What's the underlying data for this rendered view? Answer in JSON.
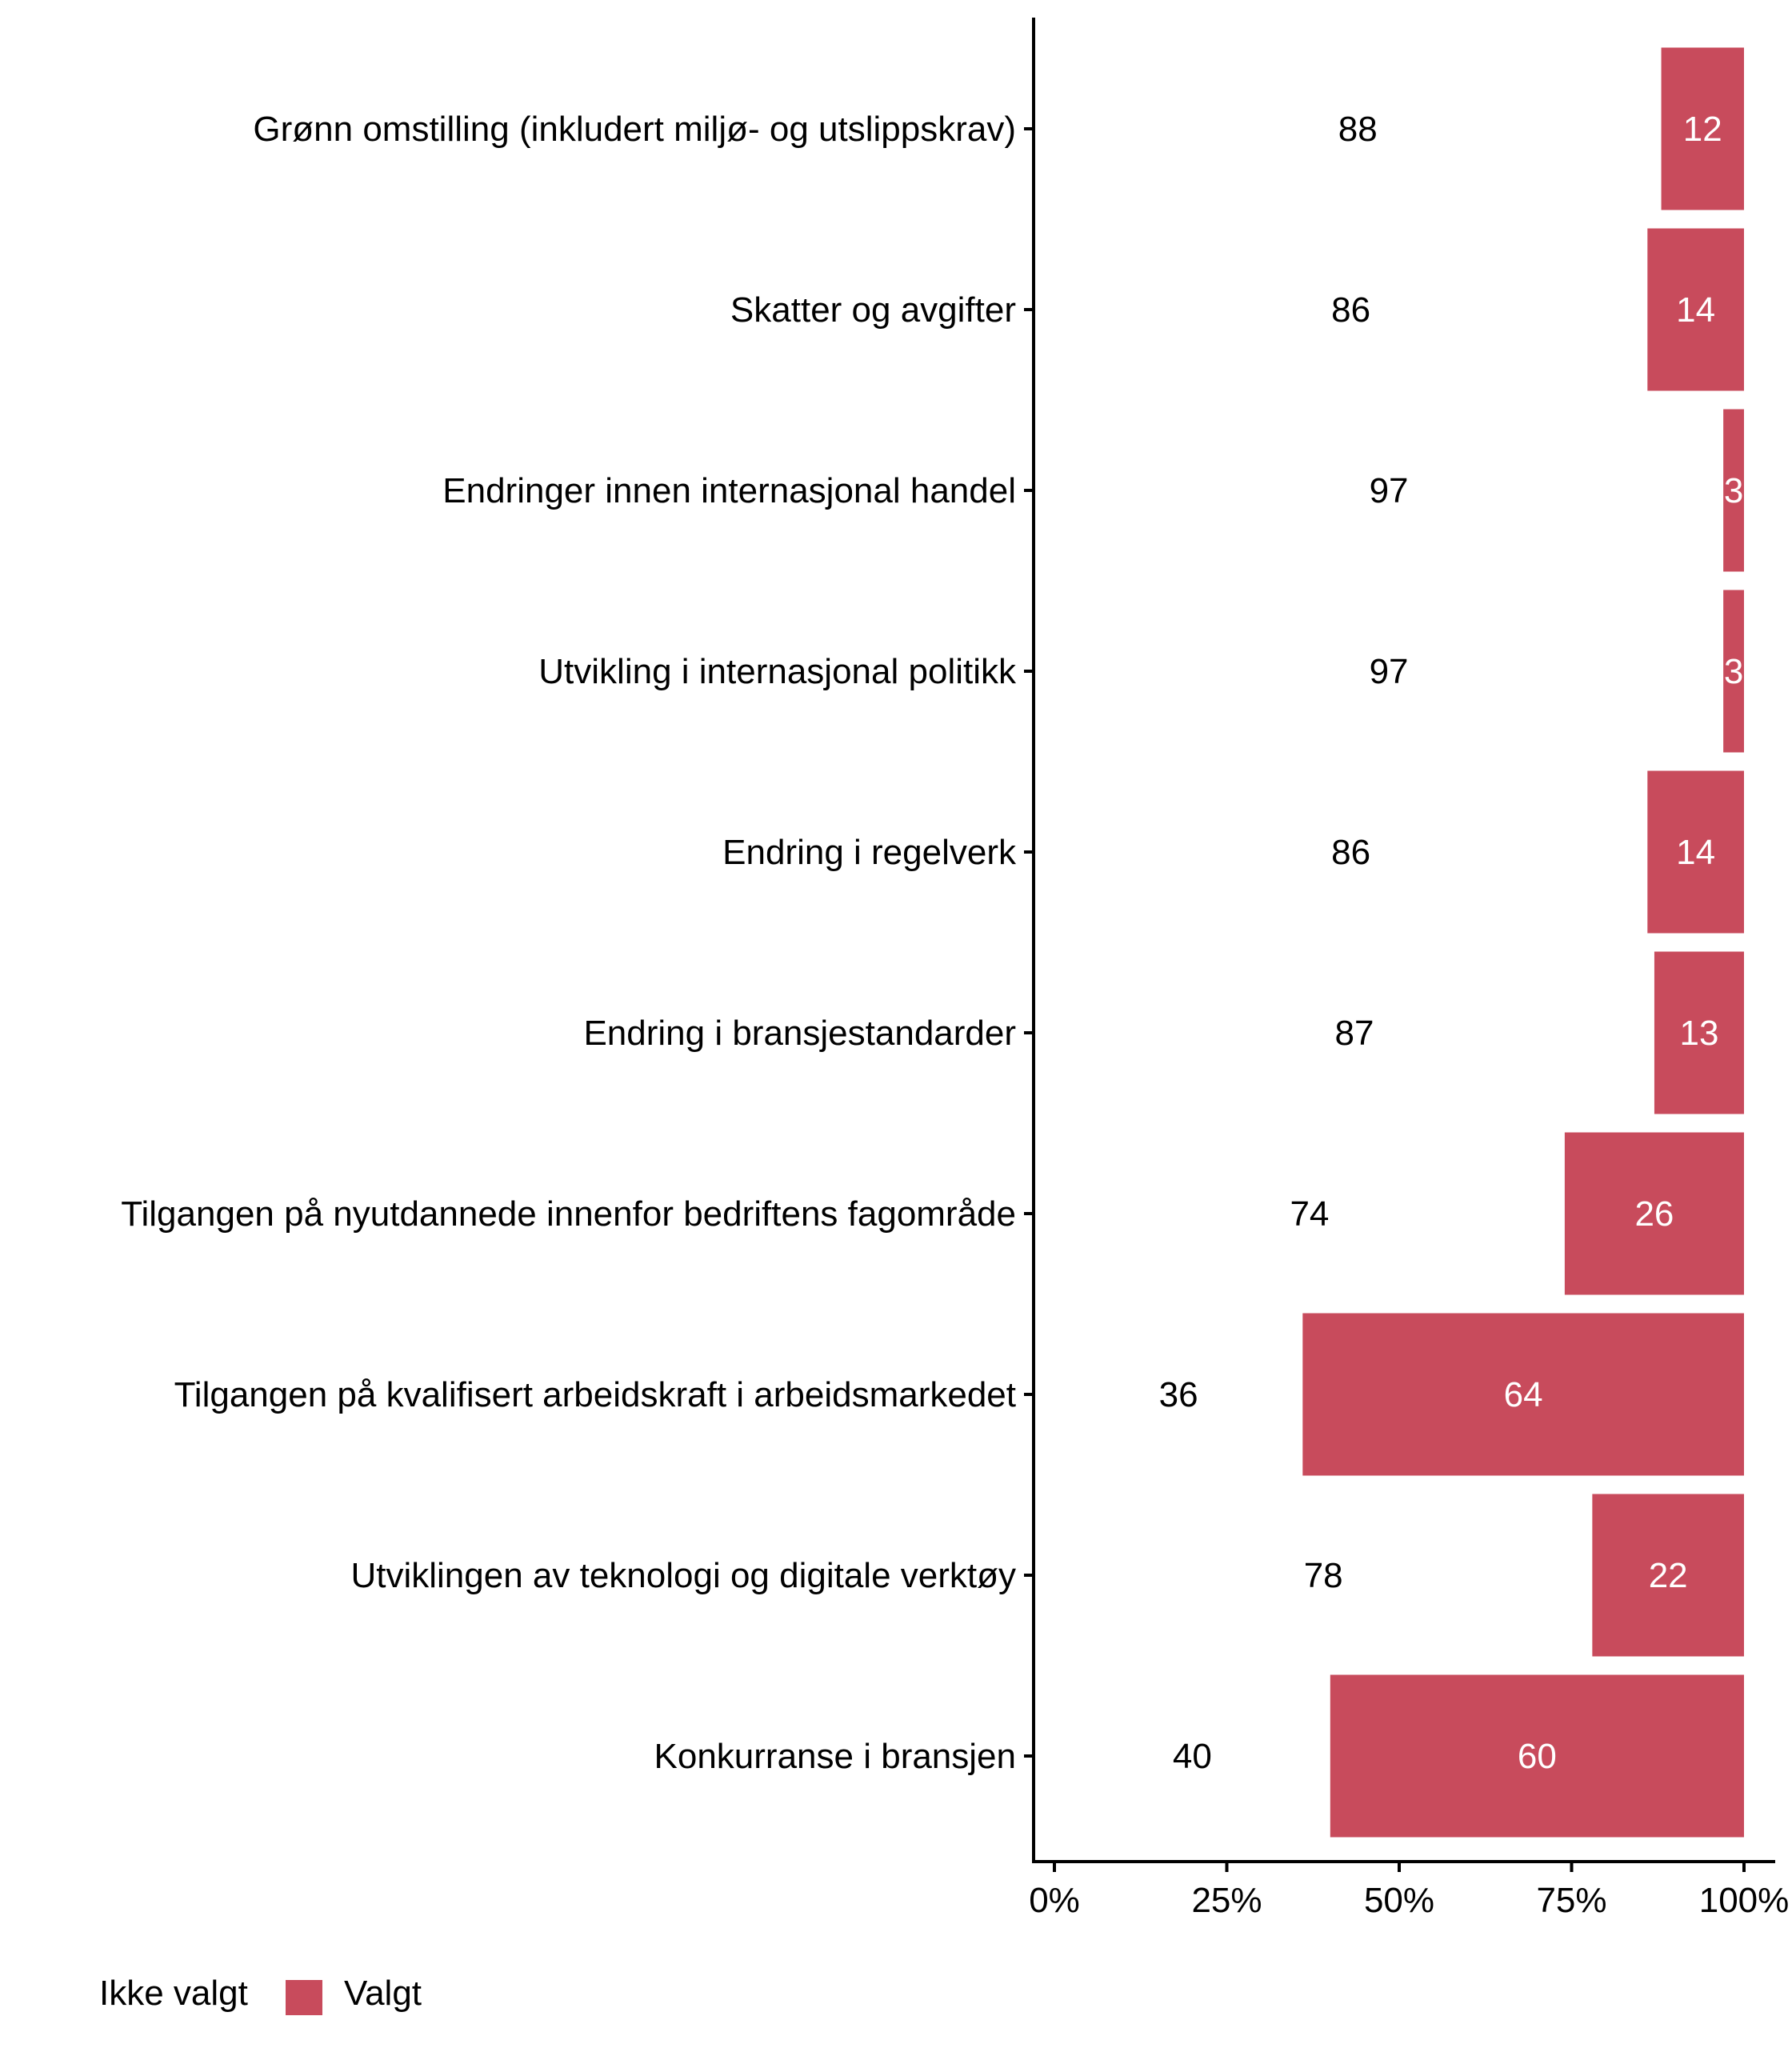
{
  "chart_data": {
    "type": "bar",
    "orientation": "horizontal",
    "stacked": true,
    "percent": true,
    "title": "",
    "xlabel": "",
    "ylabel": "",
    "xlim": [
      0,
      100
    ],
    "x_ticks": [
      "0%",
      "25%",
      "50%",
      "75%",
      "100%"
    ],
    "x_tick_values": [
      0,
      25,
      50,
      75,
      100
    ],
    "grid": false,
    "legend_position": "bottom-left",
    "categories": [
      "Grønn omstilling (inkludert miljø- og utslippskrav)",
      "Skatter og avgifter",
      "Endringer innen internasjonal handel",
      "Utvikling i internasjonal politikk",
      "Endring i regelverk",
      "Endring i bransjestandarder",
      "Tilgangen på nyutdannede innenfor bedriftens fagområde",
      "Tilgangen på kvalifisert arbeidskraft i arbeidsmarkedet",
      "Utviklingen av teknologi og digitale verktøy",
      "Konkurranse i bransjen"
    ],
    "series": [
      {
        "name": "Ikke valgt",
        "color": "#FFFFFF",
        "label_color": "#000000",
        "values": [
          88,
          86,
          97,
          97,
          86,
          87,
          74,
          36,
          78,
          40
        ]
      },
      {
        "name": "Valgt",
        "color": "#C84B5C",
        "label_color": "#FFFFFF",
        "values": [
          12,
          14,
          3,
          3,
          14,
          13,
          26,
          64,
          22,
          60
        ]
      }
    ]
  }
}
